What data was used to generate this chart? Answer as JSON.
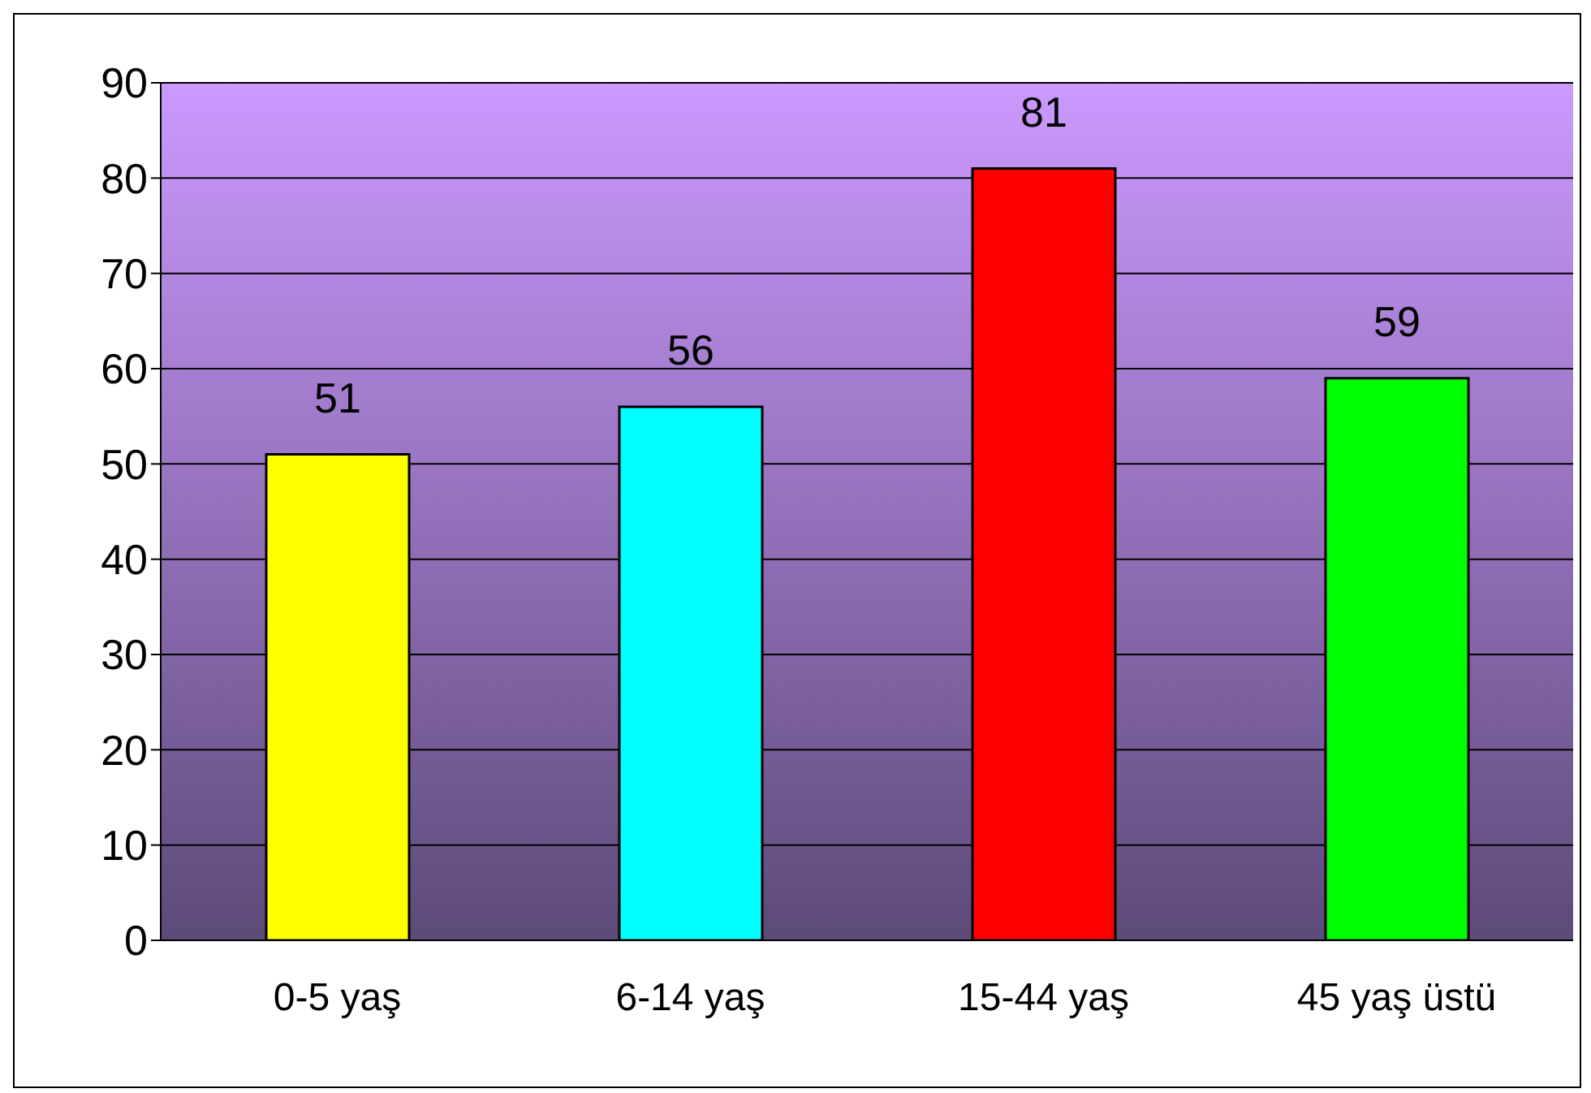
{
  "chart_data": {
    "type": "bar",
    "categories": [
      "0-5 yaş",
      "6-14 yaş",
      "15-44 yaş",
      "45 yaş üstü"
    ],
    "values": [
      51,
      56,
      81,
      59
    ],
    "colors": [
      "#ffff00",
      "#00ffff",
      "#ff0000",
      "#00ff00"
    ],
    "ylim": [
      0,
      90
    ],
    "yticks": [
      0,
      10,
      20,
      30,
      40,
      50,
      60,
      70,
      80,
      90
    ],
    "grid": "y",
    "data_labels": true
  }
}
